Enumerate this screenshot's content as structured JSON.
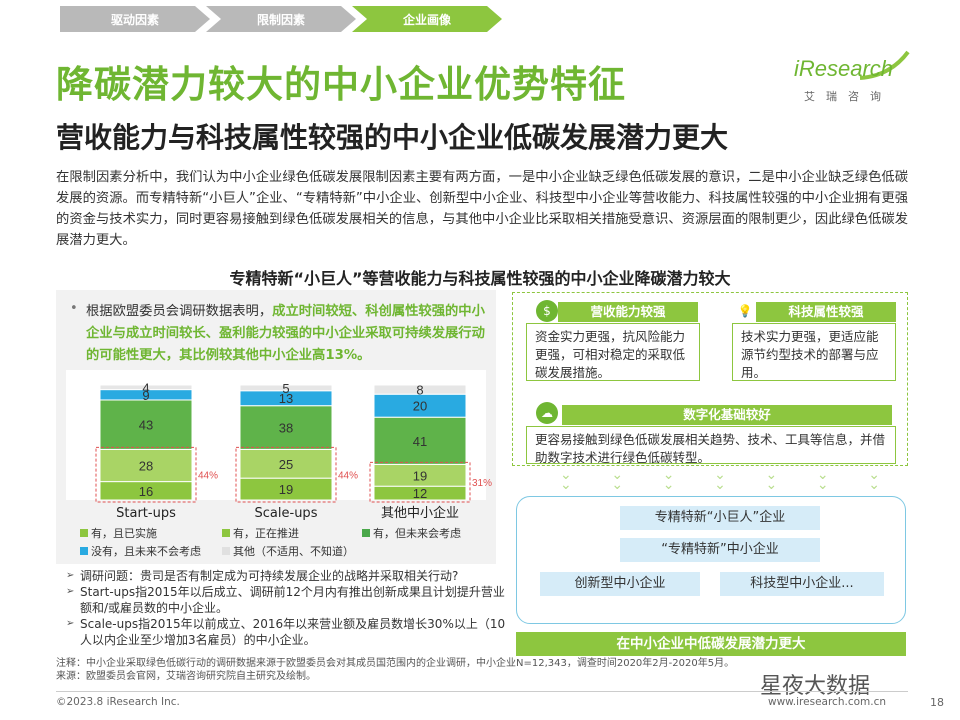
{
  "nav": {
    "tabs": [
      "驱动因素",
      "限制因素",
      "企业画像"
    ]
  },
  "logo": {
    "text": "iResearch",
    "cn": "艾瑞咨询"
  },
  "title": "降碳潜力较大的中小企业优势特征",
  "subtitle": "营收能力与科技属性较强的中小企业低碳发展潜力更大",
  "intro": "在限制因素分析中，我们认为中小企业绿色低碳发展限制因素主要有两方面，一是中小企业缺乏绿色低碳发展的意识，二是中小企业缺乏绿色低碳发展的资源。而专精特新“小巨人”企业、“专精特新”中小企业、创新型中小企业、科技型中小企业等营收能力、科技属性较强的中小企业拥有更强的资金与技术实力，同时更容易接触到绿色低碳发展相关的信息，与其他中小企业比采取相关措施受意识、资源层面的限制更少，因此绿色低碳发展潜力更大。",
  "section_heading": "专精特新“小巨人”等营收能力与科技属性较强的中小企业降碳潜力较大",
  "left": {
    "bullet_plain": "根据欧盟委员会调研数据表明，",
    "bullet_highlight": "成立时间较短、科创属性较强的中小企业与成立时间较长、盈利能力较强的中小企业采取可持续发展行动的可能性更大，其比例较其他中小企业高13%。"
  },
  "chart_data": {
    "type": "bar",
    "stacked": true,
    "categories": [
      "Start-ups",
      "Scale-ups",
      "其他中小企业"
    ],
    "series": [
      {
        "name": "有，且已实施",
        "color": "#8dc63f",
        "values": [
          16,
          19,
          12
        ]
      },
      {
        "name": "有，正在推进",
        "color": "#8dc63f",
        "values": [
          28,
          25,
          19
        ]
      },
      {
        "name": "有，但未来会考虑",
        "color": "#4aa84a",
        "values": [
          43,
          38,
          41
        ]
      },
      {
        "name": "没有，且未来不会考虑",
        "color": "#29aae1",
        "values": [
          9,
          13,
          20
        ]
      },
      {
        "name": "其他（不适用、不知道）",
        "color": "#e0e0e0",
        "values": [
          4,
          5,
          8
        ]
      }
    ],
    "bracket_labels": [
      "44%",
      "44%",
      "31%"
    ]
  },
  "notes": [
    "调研问题：贵司是否有制定成为可持续发展企业的战略并采取相关行动?",
    "Start-ups指2015年以后成立、调研前12个月内有推出创新成果且计划提升营业额和/或雇员数的中小企业。",
    "Scale-ups指2015年以前成立、2016年以来营业额及雇员数增长30%以上（10人以内企业至少增加3名雇员）的中小企业。"
  ],
  "right": {
    "card1": {
      "title": "营收能力较强",
      "icon": "$",
      "body": "资金实力更强，抗风险能力更强，可相对稳定的采取低碳发展措施。"
    },
    "card2": {
      "title": "科技属性较强",
      "icon": "💡",
      "body": "技术实力更强，更适应能源节约型技术的部署与应用。"
    },
    "card3": {
      "title": "数字化基础较好",
      "icon": "☁",
      "body": "更容易接触到绿色低碳发展相关趋势、技术、工具等信息，并借助数字技术进行绿色低碳转型。"
    },
    "boxes": [
      "专精特新“小巨人”企业",
      "“专精特新”中小企业",
      "创新型中小企业",
      "科技型中小企业..."
    ],
    "bottom": "在中小企业中低碳发展潜力更大"
  },
  "footnote": "注释：中小企业采取绿色低碳行动的调研数据来源于欧盟委员会对其成员国范围内的企业调研，中小企业N=12,343，调查时间2020年2月-2020年5月。\n来源：欧盟委员会官网，艾瑞咨询研究院自主研究及绘制。",
  "footer": {
    "copyright": "©2023.8 iResearch Inc.",
    "url": "www.iresearch.com.cn",
    "page": "18",
    "watermark": "星夜大数据"
  }
}
